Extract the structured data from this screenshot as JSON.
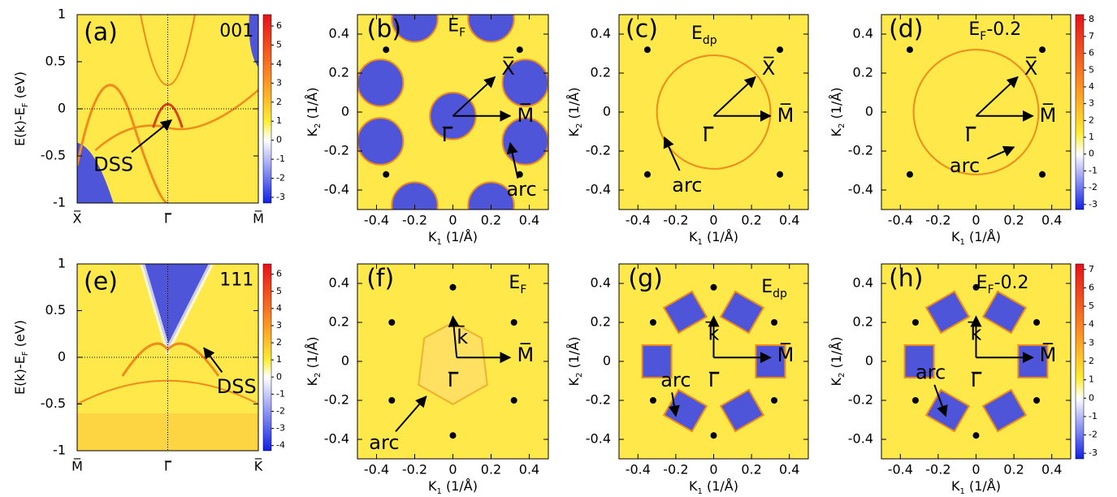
{
  "panels": [
    {
      "label": "(a)",
      "kind": "band",
      "title": [
        {
          "text": "001"
        }
      ],
      "ylim": [
        -1,
        1
      ],
      "yticks": [
        -1,
        -0.5,
        0,
        0.5,
        1
      ],
      "ylabel": [
        {
          "text": "E(k)-E"
        },
        {
          "text": "F",
          "sub": true
        },
        {
          "text": " (eV)"
        }
      ],
      "xlabels": [
        "X̅",
        "Γ̅",
        "M̅"
      ],
      "cbar_lim": [
        -3.3,
        6.6
      ],
      "cbar_ticks": [
        -3,
        -2,
        -1,
        0,
        1,
        2,
        3,
        4,
        5,
        6
      ],
      "labels": [
        "DSS"
      ]
    },
    {
      "label": "(b)",
      "kind": "map",
      "title": [
        {
          "text": "E"
        },
        {
          "text": "F",
          "sub": true
        }
      ],
      "xlim": [
        -0.5,
        0.5
      ],
      "ylim": [
        -0.5,
        0.5
      ],
      "xticks": [
        -0.4,
        -0.2,
        0,
        0.2,
        0.4
      ],
      "yticks": [
        -0.4,
        -0.2,
        0,
        0.2,
        0.4
      ],
      "xlabel": [
        {
          "text": "K"
        },
        {
          "text": "1",
          "sub": true
        },
        {
          "text": " (1/Å)"
        }
      ],
      "ylabel": [
        {
          "text": "K"
        },
        {
          "text": "2",
          "sub": true
        },
        {
          "text": " (1/Å)"
        }
      ],
      "labels": [
        "Γ̅",
        "X̅",
        "M̅",
        "arc"
      ]
    },
    {
      "label": "(c)",
      "kind": "map",
      "title": [
        {
          "text": "E"
        },
        {
          "text": "dp",
          "sub": true
        }
      ],
      "xlim": [
        -0.5,
        0.5
      ],
      "ylim": [
        -0.5,
        0.5
      ],
      "xticks": [
        -0.4,
        -0.2,
        0,
        0.2,
        0.4
      ],
      "yticks": [
        -0.4,
        -0.2,
        0,
        0.2,
        0.4
      ],
      "xlabel": [
        {
          "text": "K"
        },
        {
          "text": "1",
          "sub": true
        },
        {
          "text": " (1/Å)"
        }
      ],
      "ylabel": [
        {
          "text": "K"
        },
        {
          "text": "2",
          "sub": true
        },
        {
          "text": " (1/Å)"
        }
      ],
      "labels": [
        "Γ̅",
        "X̅",
        "M̅",
        "arc"
      ]
    },
    {
      "label": "(d)",
      "kind": "map",
      "title": [
        {
          "text": "E"
        },
        {
          "text": "F",
          "sub": true
        },
        {
          "text": "-0.2"
        }
      ],
      "xlim": [
        -0.5,
        0.5
      ],
      "ylim": [
        -0.5,
        0.5
      ],
      "xticks": [
        -0.4,
        -0.2,
        0,
        0.2,
        0.4
      ],
      "yticks": [
        -0.4,
        -0.2,
        0,
        0.2,
        0.4
      ],
      "xlabel": [
        {
          "text": "K"
        },
        {
          "text": "1",
          "sub": true
        },
        {
          "text": " (1/Å)"
        }
      ],
      "ylabel": [
        {
          "text": "K"
        },
        {
          "text": "2",
          "sub": true
        },
        {
          "text": " (1/Å)"
        }
      ],
      "cbar_lim": [
        -3.3,
        8.3
      ],
      "cbar_ticks": [
        -3,
        -2,
        -1,
        0,
        1,
        2,
        3,
        4,
        5,
        6,
        7,
        8
      ],
      "labels": [
        "Γ̅",
        "X̅",
        "M̅",
        "arc"
      ]
    },
    {
      "label": "(e)",
      "kind": "band",
      "title": [
        {
          "text": "111"
        }
      ],
      "ylim": [
        -1,
        1
      ],
      "yticks": [
        -1,
        -0.5,
        0,
        0.5,
        1
      ],
      "ylabel": [
        {
          "text": "E(k)-E"
        },
        {
          "text": "F",
          "sub": true
        },
        {
          "text": " (eV)"
        }
      ],
      "xlabels": [
        "M̅",
        "Γ̅",
        "K̅"
      ],
      "cbar_lim": [
        -4.3,
        6.6
      ],
      "cbar_ticks": [
        -4,
        -3,
        -2,
        -1,
        0,
        1,
        2,
        3,
        4,
        5,
        6
      ],
      "labels": [
        "DSS"
      ]
    },
    {
      "label": "(f)",
      "kind": "map",
      "title": [
        {
          "text": "E"
        },
        {
          "text": "F",
          "sub": true
        }
      ],
      "xlim": [
        -0.5,
        0.5
      ],
      "ylim": [
        -0.5,
        0.5
      ],
      "xticks": [
        -0.4,
        -0.2,
        0,
        0.2,
        0.4
      ],
      "yticks": [
        -0.4,
        -0.2,
        0,
        0.2,
        0.4
      ],
      "xlabel": [
        {
          "text": "K"
        },
        {
          "text": "1",
          "sub": true
        },
        {
          "text": " (1/Å)"
        }
      ],
      "ylabel": [
        {
          "text": "K"
        },
        {
          "text": "2",
          "sub": true
        },
        {
          "text": " (1/Å)"
        }
      ],
      "labels": [
        "Γ̅",
        "k̅",
        "M̅",
        "arc"
      ]
    },
    {
      "label": "(g)",
      "kind": "map",
      "title": [
        {
          "text": "E"
        },
        {
          "text": "dp",
          "sub": true
        }
      ],
      "xlim": [
        -0.5,
        0.5
      ],
      "ylim": [
        -0.5,
        0.5
      ],
      "xticks": [
        -0.4,
        -0.2,
        0,
        0.2,
        0.4
      ],
      "yticks": [
        -0.4,
        -0.2,
        0,
        0.2,
        0.4
      ],
      "xlabel": [
        {
          "text": "K"
        },
        {
          "text": "1",
          "sub": true
        },
        {
          "text": " (1/Å)"
        }
      ],
      "ylabel": [
        {
          "text": "K"
        },
        {
          "text": "2",
          "sub": true
        },
        {
          "text": " (1/Å)"
        }
      ],
      "labels": [
        "Γ̅",
        "k̅",
        "M̅",
        "arc"
      ]
    },
    {
      "label": "(h)",
      "kind": "map",
      "title": [
        {
          "text": "E"
        },
        {
          "text": "F",
          "sub": true
        },
        {
          "text": "-0.2"
        }
      ],
      "xlim": [
        -0.5,
        0.5
      ],
      "ylim": [
        -0.5,
        0.5
      ],
      "xticks": [
        -0.4,
        -0.2,
        0,
        0.2,
        0.4
      ],
      "yticks": [
        -0.4,
        -0.2,
        0,
        0.2,
        0.4
      ],
      "xlabel": [
        {
          "text": "K"
        },
        {
          "text": "1",
          "sub": true
        },
        {
          "text": " (1/Å)"
        }
      ],
      "ylabel": [
        {
          "text": "K"
        },
        {
          "text": "2",
          "sub": true
        },
        {
          "text": " (1/Å)"
        }
      ],
      "cbar_lim": [
        -3.3,
        7.3
      ],
      "cbar_ticks": [
        -3,
        -2,
        -1,
        0,
        1,
        2,
        3,
        4,
        5,
        6,
        7
      ],
      "labels": [
        "Γ̅",
        "k̅",
        "M̅",
        "arc"
      ]
    }
  ]
}
